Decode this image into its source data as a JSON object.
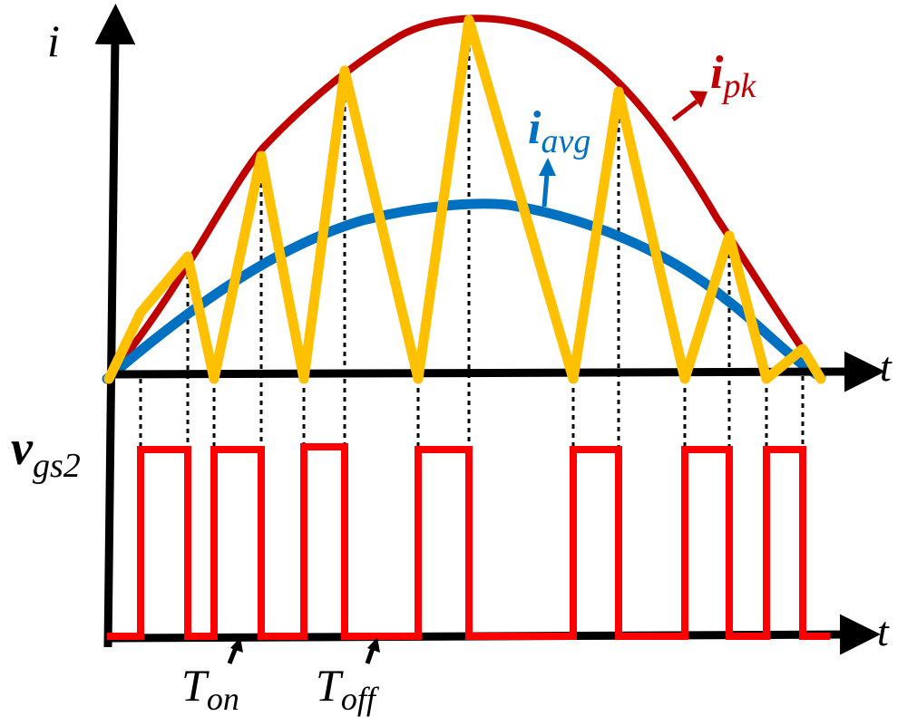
{
  "labels": {
    "current_axis": "i",
    "time_axis_top": "t",
    "time_axis_bottom": "t",
    "gate_voltage": {
      "main": "v",
      "sub": "gs2"
    },
    "peak_current": {
      "main": "i",
      "sub": "pk"
    },
    "average_current": {
      "main": "i",
      "sub": "avg"
    },
    "on_time": {
      "main": "T",
      "sub": "on"
    },
    "off_time": {
      "main": "T",
      "sub": "off"
    }
  },
  "colors": {
    "axes": "#000000",
    "peak_envelope": "#c00000",
    "average_current": "#0070c0",
    "inductor_current": "#ffc000",
    "gate_signal": "#ff0000",
    "guide_lines": "#000000"
  }
}
